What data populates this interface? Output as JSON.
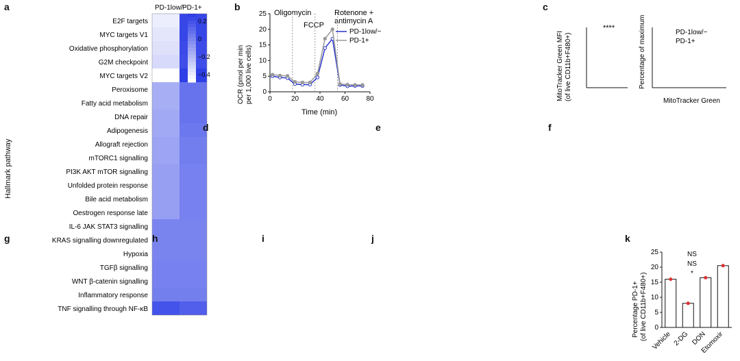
{
  "panel_letters": {
    "a": "a",
    "b": "b",
    "c": "c",
    "d": "d",
    "e": "e",
    "f": "f",
    "g": "g",
    "h": "h",
    "i": "i",
    "j": "j",
    "k": "k"
  },
  "panel_a": {
    "col_low": "PD-1low/−",
    "col_pos": "PD-1+",
    "y_axis_title": "Hallmark pathway",
    "colorbar_ticks": [
      "0.2",
      "0",
      "−0.2",
      "−0.4"
    ],
    "colors": {
      "low": "#ffffff",
      "high": "#2f3fe6",
      "mid": "#8f9df5"
    }
  },
  "chart_data": [
    {
      "panel": "a",
      "type": "heatmap",
      "columns": [
        "PD-1low/−",
        "PD-1+"
      ],
      "rows": [
        "E2F targets",
        "MYC targets V1",
        "Oxidative phosphorylation",
        "G2M checkpoint",
        "MYC targets V2",
        "Peroxisome",
        "Fatty acid metabolism",
        "DNA repair",
        "Adipogenesis",
        "Allograft rejection",
        "mTORC1 signalling",
        "PI3K AKT mTOR signalling",
        "Unfolded protein response",
        "Bile acid metabolism",
        "Oestrogen response late",
        "IL-6 JAK STAT3 signalling",
        "KRAS signalling downregulated",
        "Hypoxia",
        "TGFβ signalling",
        "WNT β-catenin signalling",
        "Inflammatory response",
        "TNF signalling through NF-κB"
      ],
      "values": [
        [
          -0.38,
          0.3
        ],
        [
          -0.35,
          0.3
        ],
        [
          -0.33,
          0.28
        ],
        [
          -0.3,
          0.27
        ],
        [
          -0.5,
          0.33
        ],
        [
          -0.12,
          0.12
        ],
        [
          -0.12,
          0.12
        ],
        [
          -0.1,
          0.12
        ],
        [
          -0.1,
          0.1
        ],
        [
          -0.08,
          0.08
        ],
        [
          -0.08,
          0.08
        ],
        [
          -0.06,
          0.06
        ],
        [
          -0.06,
          0.06
        ],
        [
          -0.06,
          0.06
        ],
        [
          -0.06,
          0.06
        ],
        [
          0.05,
          0.05
        ],
        [
          0.05,
          0.05
        ],
        [
          0.05,
          0.05
        ],
        [
          0.06,
          0.06
        ],
        [
          0.06,
          0.06
        ],
        [
          0.07,
          0.07
        ],
        [
          0.25,
          0.2
        ]
      ],
      "color_range": [
        -0.45,
        0.33
      ]
    },
    {
      "panel": "b",
      "type": "line",
      "xlabel": "Time (min)",
      "ylabel": "OCR (pmol per min per 1,000 live cells)",
      "x_ticks": [
        "0",
        "20",
        "40",
        "60",
        "80"
      ],
      "y_ticks": [
        "0",
        "5",
        "10",
        "15",
        "20",
        "25"
      ],
      "xlim": [
        0,
        80
      ],
      "ylim": [
        0,
        25
      ],
      "injections": [
        "Oligomycin",
        "FCCP",
        "Rotenone + antimycin A"
      ],
      "series": [
        {
          "name": "PD-1low/−",
          "x": [
            2,
            8,
            14,
            20,
            26,
            32,
            38,
            44,
            50,
            56,
            62,
            68,
            74
          ],
          "y": [
            5,
            4.6,
            4.4,
            2.5,
            2.3,
            2.3,
            4.6,
            14,
            17,
            2.2,
            1.8,
            1.9,
            1.9
          ]
        },
        {
          "name": "PD-1+",
          "x": [
            2,
            8,
            14,
            20,
            26,
            32,
            38,
            44,
            50,
            56,
            62,
            68,
            74
          ],
          "y": [
            5.5,
            5.2,
            5.1,
            3.2,
            3,
            3,
            5.8,
            17,
            20,
            2.5,
            2.3,
            2.2,
            2.2
          ]
        }
      ]
    }
  ],
  "panel_b_chart": {
    "oligomycin": "Oligomycin",
    "fccp": "FCCP",
    "rotenone_line1": "Rotenone +",
    "rotenone_line2": "antimycin A",
    "ylabel_line1": "OCR (pmol per min",
    "ylabel_line2": "per 1,000 live cells)",
    "xlabel": "Time (min)",
    "legend_low": "PD-1low/−",
    "legend_pos": "PD-1+"
  },
  "panel_c": {
    "ylabel_line1": "MitoTracker Green MFI",
    "ylabel_line2": "(of live CD11b+F480+)",
    "significance": "****",
    "flow_xlabel": "MitoTracker Green",
    "flow_ylabel": "Percentage of maximum",
    "legend_low": "PD-1low/−",
    "legend_pos": "PD-1+"
  },
  "panel_k": {
    "ylabel_line1": "Percentage PD-1+",
    "ylabel_line2": "(of live CD11b+F480+)",
    "categories": [
      "Vehicle",
      "2-DG",
      "DON",
      "Etomoxir"
    ],
    "values": [
      16,
      8,
      16.5,
      20.5
    ],
    "y_ticks": [
      "0",
      "5",
      "10",
      "15",
      "20",
      "25"
    ],
    "ylim": [
      0,
      25
    ],
    "significance": [
      "NS",
      "NS",
      "*"
    ]
  }
}
